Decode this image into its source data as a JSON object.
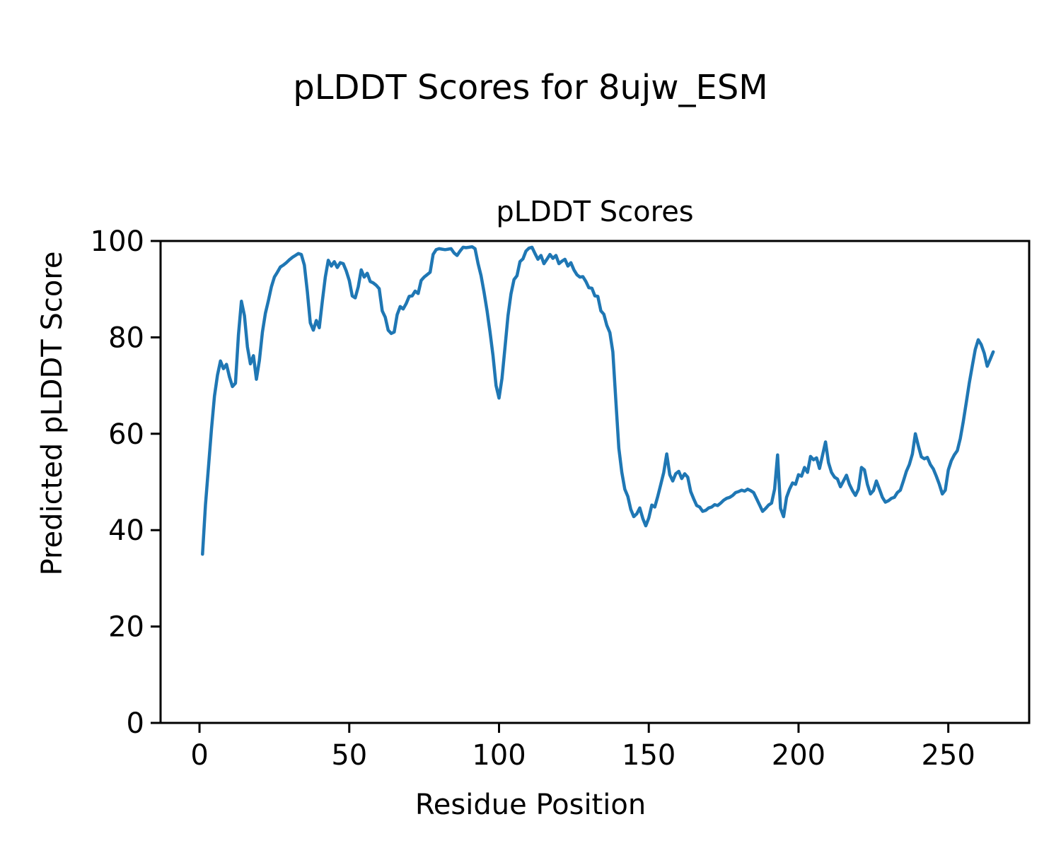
{
  "figure": {
    "suptitle": "pLDDT Scores for 8ujw_ESM",
    "axes_title": "pLDDT Scores",
    "xlabel": "Residue Position",
    "ylabel": "Predicted pLDDT Score"
  },
  "colors": {
    "line": "#1f77b4",
    "text": "#000000",
    "background": "#ffffff",
    "spine": "#000000"
  },
  "chart_data": {
    "type": "line",
    "title": "pLDDT Scores",
    "suptitle": "pLDDT Scores for 8ujw_ESM",
    "xlabel": "Residue Position",
    "ylabel": "Predicted pLDDT Score",
    "xlim": [
      -13,
      277
    ],
    "ylim": [
      0,
      100
    ],
    "x_ticks": [
      0,
      50,
      100,
      150,
      200,
      250
    ],
    "y_ticks": [
      0,
      20,
      40,
      60,
      80,
      100
    ],
    "grid": false,
    "legend_position": "none",
    "series": [
      {
        "name": "pLDDT",
        "color": "#1f77b4",
        "x_start": 1,
        "x_step": 1,
        "values": [
          35.0,
          45.3,
          53.2,
          61.0,
          67.8,
          72.2,
          75.1,
          73.5,
          74.4,
          71.8,
          69.8,
          70.5,
          80.5,
          87.5,
          84.5,
          78.0,
          74.5,
          76.2,
          71.3,
          75.2,
          81.1,
          85.0,
          87.6,
          90.5,
          92.5,
          93.5,
          94.6,
          95.0,
          95.5,
          96.1,
          96.6,
          97.0,
          97.4,
          97.2,
          95.0,
          89.5,
          83.0,
          81.5,
          83.5,
          82.0,
          87.5,
          92.5,
          96.0,
          94.8,
          95.7,
          94.5,
          95.5,
          95.3,
          93.8,
          91.8,
          88.6,
          88.2,
          90.5,
          94.0,
          92.5,
          93.3,
          91.6,
          91.3,
          90.8,
          90.1,
          85.5,
          84.2,
          81.5,
          80.8,
          81.1,
          84.7,
          86.4,
          85.9,
          87.0,
          88.5,
          88.6,
          89.6,
          89.1,
          91.8,
          92.5,
          93.0,
          93.5,
          97.2,
          98.2,
          98.4,
          98.3,
          98.2,
          98.3,
          98.4,
          97.5,
          97.0,
          97.9,
          98.7,
          98.6,
          98.7,
          98.8,
          98.4,
          95.3,
          92.8,
          89.4,
          85.5,
          81.1,
          76.2,
          70.0,
          67.4,
          71.5,
          78.0,
          84.5,
          89.0,
          92.0,
          92.8,
          95.7,
          96.3,
          97.9,
          98.5,
          98.7,
          97.4,
          96.2,
          97.0,
          95.3,
          96.2,
          97.2,
          96.4,
          97.0,
          95.3,
          95.8,
          96.2,
          94.8,
          95.5,
          94.0,
          93.0,
          92.5,
          92.6,
          91.6,
          90.3,
          90.2,
          88.6,
          88.5,
          85.5,
          84.8,
          82.5,
          81.0,
          77.0,
          67.0,
          57.0,
          52.0,
          48.5,
          47.0,
          44.3,
          42.8,
          43.4,
          44.6,
          42.4,
          40.9,
          42.5,
          45.2,
          44.8,
          47.0,
          49.5,
          52.0,
          55.8,
          51.5,
          50.2,
          51.7,
          52.2,
          50.7,
          51.7,
          51.0,
          48.0,
          46.5,
          45.1,
          44.8,
          43.9,
          44.1,
          44.6,
          44.8,
          45.3,
          45.1,
          45.6,
          46.2,
          46.6,
          46.8,
          47.2,
          47.8,
          48.0,
          48.3,
          48.1,
          48.5,
          48.2,
          47.8,
          46.5,
          45.2,
          43.9,
          44.5,
          45.2,
          45.6,
          48.5,
          55.6,
          44.5,
          42.8,
          46.8,
          48.5,
          49.8,
          49.5,
          51.5,
          51.2,
          53.0,
          52.0,
          55.3,
          54.6,
          55.0,
          52.8,
          55.5,
          58.3,
          54.0,
          52.0,
          51.0,
          50.6,
          49.0,
          50.2,
          51.4,
          49.5,
          48.2,
          47.2,
          48.5,
          53.0,
          52.5,
          49.5,
          47.5,
          48.2,
          50.2,
          48.5,
          46.8,
          45.8,
          46.1,
          46.6,
          46.8,
          47.8,
          48.3,
          50.2,
          52.2,
          53.6,
          55.8,
          60.0,
          57.5,
          55.2,
          54.8,
          55.1,
          53.6,
          52.7,
          51.2,
          49.5,
          47.5,
          48.3,
          52.5,
          54.4,
          55.6,
          56.5,
          59.0,
          62.5,
          66.5,
          70.5,
          74.0,
          77.5,
          79.5,
          78.5,
          76.7,
          74.0,
          75.5,
          77.0
        ]
      }
    ]
  }
}
